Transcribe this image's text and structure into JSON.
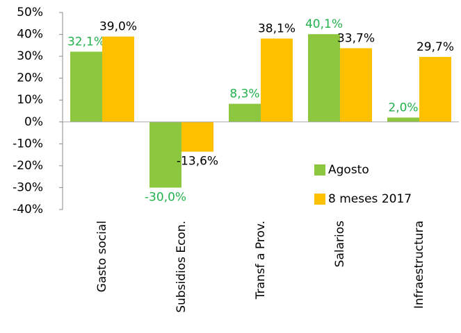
{
  "chart_data": {
    "type": "bar",
    "categories": [
      "Gasto social",
      "Subsidios Econ.",
      "Transf a Prov.",
      "Salarios",
      "Infraestructura"
    ],
    "series": [
      {
        "name": "Agosto",
        "color": "#8dc63f",
        "label_color": "#22b14c",
        "values": [
          32.1,
          -30.0,
          8.3,
          40.1,
          2.0
        ],
        "value_labels": [
          "32,1%",
          "-30,0%",
          "8,3%",
          "40,1%",
          "2,0%"
        ]
      },
      {
        "name": "8 meses 2017",
        "color": "#ffc000",
        "label_color": "#000000",
        "values": [
          39.0,
          -13.6,
          38.1,
          33.7,
          29.7
        ],
        "value_labels": [
          "39,0%",
          "-13,6%",
          "38,1%",
          "33,7%",
          "29,7%"
        ]
      }
    ],
    "ylim": [
      -40,
      50
    ],
    "yticks": [
      {
        "value": -40,
        "label": "-40%"
      },
      {
        "value": -30,
        "label": "-30%"
      },
      {
        "value": -20,
        "label": "-20%"
      },
      {
        "value": -10,
        "label": "-10%"
      },
      {
        "value": 0,
        "label": "0%"
      },
      {
        "value": 10,
        "label": "10%"
      },
      {
        "value": 20,
        "label": "20%"
      },
      {
        "value": 30,
        "label": "30%"
      },
      {
        "value": 40,
        "label": "40%"
      },
      {
        "value": 50,
        "label": "50%"
      }
    ],
    "legend": "right"
  }
}
